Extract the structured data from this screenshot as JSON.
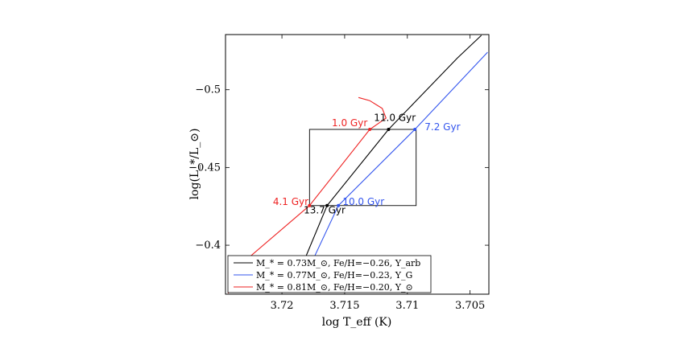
{
  "chart_data": {
    "type": "line",
    "xlabel": "log T_eff (K)",
    "ylabel": "log(L_*/L_⊙)",
    "xlim": [
      3.7245,
      3.7035
    ],
    "ylim": [
      -0.5355,
      -0.3685
    ],
    "x_reversed": true,
    "xticks": [
      3.72,
      3.715,
      3.71,
      3.705
    ],
    "xtick_labels": [
      "3.72",
      "3.715",
      "3.71",
      "3.705"
    ],
    "yticks": [
      -0.4,
      -0.45,
      -0.5
    ],
    "ytick_labels": [
      "−0.4",
      "−0.45",
      "−0.5"
    ],
    "grid": false,
    "legend_position": "bottom-left",
    "box": {
      "x": [
        3.7178,
        3.7093
      ],
      "y": [
        -0.4255,
        -0.4745
      ]
    },
    "series": [
      {
        "name": "M_* = 0.73M_⊙, Fe/H=−0.26, Y_arb",
        "color": "#000000",
        "x": [
          3.7188,
          3.7164,
          3.7115,
          3.706,
          3.7041
        ],
        "y": [
          -0.3791,
          -0.4255,
          -0.4745,
          -0.5205,
          -0.535
        ]
      },
      {
        "name": "M_* = 0.77M_⊙, Fe/H=−0.23, Y_G",
        "color": "#3355ee",
        "x": [
          3.7183,
          3.7155,
          3.7094,
          3.7036
        ],
        "y": [
          -0.3773,
          -0.4255,
          -0.4745,
          -0.5241
        ]
      },
      {
        "name": "M_* = 0.81M_⊙, Fe/H=−0.20, Y_⊙",
        "color": "#ee2222",
        "x": [
          3.7243,
          3.7225,
          3.7178,
          3.713,
          3.7117,
          3.712,
          3.713,
          3.7139
        ],
        "y": [
          -0.3691,
          -0.393,
          -0.4255,
          -0.4745,
          -0.4818,
          -0.488,
          -0.493,
          -0.495
        ]
      }
    ],
    "points": [
      {
        "x": 3.7178,
        "y": -0.4255,
        "color": "#ee2222"
      },
      {
        "x": 3.7164,
        "y": -0.4255,
        "color": "#000000"
      },
      {
        "x": 3.7155,
        "y": -0.4255,
        "color": "#3355ee"
      },
      {
        "x": 3.713,
        "y": -0.4745,
        "color": "#ee2222"
      },
      {
        "x": 3.7115,
        "y": -0.4745,
        "color": "#000000"
      },
      {
        "x": 3.7094,
        "y": -0.4745,
        "color": "#3355ee"
      }
    ],
    "annotations": [
      {
        "text": "13.7 Gyr",
        "color": "#000000",
        "x": 3.7166,
        "y": -0.4225
      },
      {
        "text": "4.1 Gyr",
        "color": "#ee2222",
        "x": 3.7193,
        "y": -0.428
      },
      {
        "text": "10.0 Gyr",
        "color": "#3355ee",
        "x": 3.7135,
        "y": -0.428
      },
      {
        "text": "1.0 Gyr",
        "color": "#ee2222",
        "x": 3.7146,
        "y": -0.4785
      },
      {
        "text": "11.0 Gyr",
        "color": "#000000",
        "x": 3.711,
        "y": -0.482
      },
      {
        "text": "7.2 Gyr",
        "color": "#3355ee",
        "x": 3.7072,
        "y": -0.476
      }
    ]
  }
}
